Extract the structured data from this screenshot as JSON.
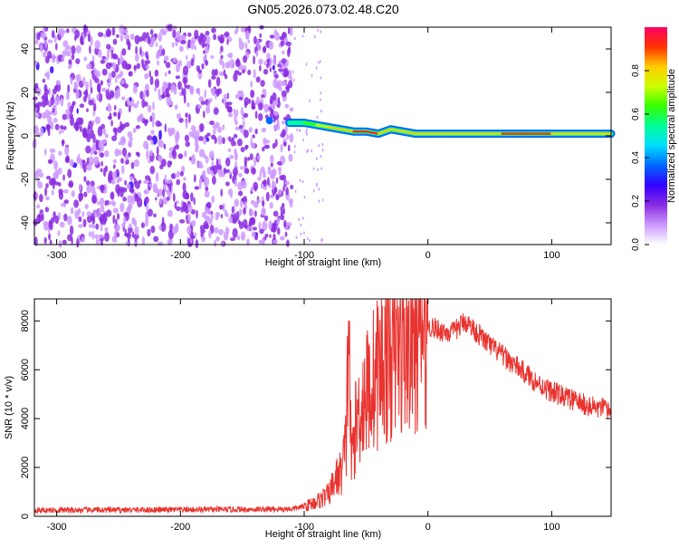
{
  "title": "GN05.2026.073.02.48.C20",
  "spectrogram": {
    "ylabel": "Frequency (Hz)",
    "xlabel": "Height of straight line (km)",
    "xlim": [
      -318,
      148
    ],
    "ylim": [
      -50,
      50
    ],
    "x_ticks": [
      -300,
      -200,
      -100,
      0,
      100
    ],
    "x_tick_labels": [
      "-300",
      "-200",
      "-100",
      "0",
      "100"
    ],
    "y_ticks": [
      40,
      20,
      0,
      -20,
      -40
    ],
    "y_tick_labels": [
      "40",
      "20",
      "0",
      "-20",
      "-40"
    ]
  },
  "colorbar": {
    "label": "Normalized spectral amplitude",
    "range": [
      0,
      1
    ],
    "ticks": [
      0.0,
      0.2,
      0.4,
      0.6,
      0.8
    ],
    "tick_labels": [
      "0.0",
      "0.2",
      "0.4",
      "0.6",
      "0.8"
    ],
    "colors": [
      "#ffffff",
      "#cc99ff",
      "#8a2be2",
      "#3300ff",
      "#0066ff",
      "#00ddff",
      "#00ff99",
      "#33ff00",
      "#ccff00",
      "#ffcc00",
      "#ff3300",
      "#ff0066"
    ]
  },
  "chart_data": [
    {
      "type": "heatmap",
      "description_of_features": "noise region from -318 to -110 km; narrow band near 0-6 Hz from -110 to 148 km",
      "band": {
        "x": [
          -112,
          -100,
          -90,
          -80,
          -70,
          -60,
          -50,
          -40,
          -30,
          -20,
          -10,
          0,
          20,
          40,
          60,
          80,
          100,
          148
        ],
        "freq_hz": [
          6,
          6,
          5,
          4,
          3,
          2,
          2,
          1,
          3,
          2,
          1,
          1,
          1,
          1,
          1,
          1,
          1,
          1
        ],
        "amplitude": [
          0.5,
          0.6,
          0.7,
          0.8,
          0.85,
          0.9,
          0.9,
          0.85,
          0.8,
          0.85,
          0.8,
          0.85,
          0.8,
          0.85,
          0.9,
          0.9,
          0.85,
          0.85
        ]
      },
      "spot": {
        "x": -128,
        "freq_hz": 7,
        "amplitude": 0.35
      }
    },
    {
      "type": "line",
      "ylabel": "SNR (10 * v/v)",
      "xlabel": "Height of straight line (km)",
      "xlim": [
        -318,
        148
      ],
      "ylim": [
        0,
        8900
      ],
      "x_ticks": [
        -300,
        -200,
        -100,
        0,
        100
      ],
      "x_tick_labels": [
        "-300",
        "-200",
        "-100",
        "0",
        "100"
      ],
      "y_ticks": [
        0,
        2000,
        4000,
        6000,
        8000
      ],
      "y_tick_labels": [
        "0",
        "2000",
        "4000",
        "6000",
        "8000"
      ],
      "color": "#e8332f",
      "series": [
        {
          "x": [
            -318,
            -300,
            -250,
            -200,
            -150,
            -110,
            -100,
            -90,
            -80,
            -75,
            -70,
            -66,
            -64,
            -62,
            -60,
            -55,
            -50,
            -45,
            -40,
            -35,
            -30,
            -25,
            -20,
            -15,
            -10,
            -5,
            0,
            10,
            20,
            30,
            40,
            50,
            60,
            70,
            80,
            90,
            100,
            110,
            120,
            130,
            140,
            148
          ],
          "y": [
            250,
            250,
            260,
            270,
            280,
            300,
            400,
            600,
            900,
            1500,
            1800,
            3000,
            8400,
            2000,
            3200,
            4500,
            5000,
            5500,
            6000,
            6300,
            6600,
            6800,
            7000,
            7100,
            7300,
            7600,
            7800,
            7600,
            7500,
            8000,
            7500,
            7000,
            6600,
            6200,
            5800,
            5400,
            5100,
            4900,
            4700,
            4500,
            4400,
            4300
          ]
        }
      ]
    }
  ]
}
